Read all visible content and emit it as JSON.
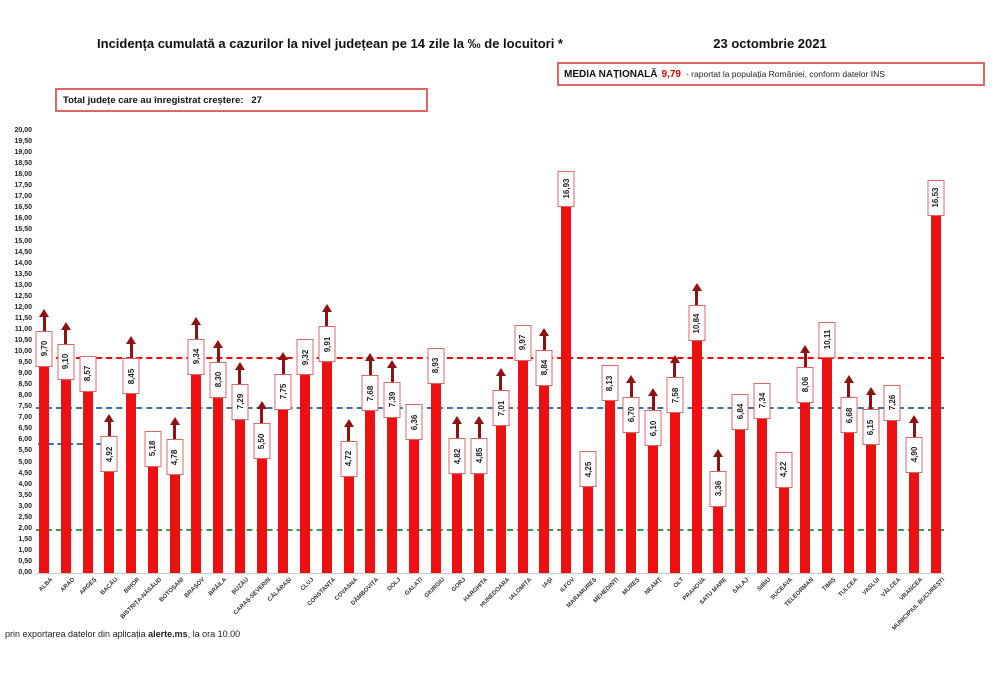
{
  "header": {
    "title": "Incidența cumulată a cazurilor la nivel județean pe 14 zile la ‰ de locuitori *",
    "date": "23 octombrie 2021"
  },
  "national_average_box": {
    "label": "MEDIA NAȚIONALĂ",
    "value": "9,79",
    "suffix": "-  raportat la populația României, conform datelor INS"
  },
  "total_box": {
    "label": "Total județe care au înregistrat creștere:",
    "value": "27"
  },
  "footer": {
    "prefix": "prin exportarea datelor din aplicația ",
    "app_name": "alerte.ms",
    "suffix": ", la ora 10.00"
  },
  "colors": {
    "bar": "#ee1010",
    "arrow": "#8e1212",
    "label_box_border": "#e06666",
    "media_value_red": "#e00000",
    "line_red": "#ff0000",
    "line_blue": "#2e75b6",
    "line_green": "#2f9e4f"
  },
  "chart_data": {
    "type": "bar",
    "title": "Incidența cumulată a cazurilor la nivel județean pe 14 zile la ‰ de locuitori *",
    "xlabel": "",
    "ylabel": "",
    "ylim": [
      0,
      20
    ],
    "ytick_step": 0.5,
    "grid": false,
    "legend": "none",
    "value_label_format": "comma-decimal, boxed, rotated 90°",
    "increase_marker": "dark-red up arrow above label (27 counties)",
    "reference_lines": [
      {
        "name": "media-nationala",
        "value": 9.79,
        "color": "#ff0000",
        "style": "dashed",
        "extent": "full"
      },
      {
        "name": "prag-7-5",
        "value": 7.5,
        "color": "#2e75b6",
        "style": "dashed",
        "extent": "full"
      },
      {
        "name": "prag-2",
        "value": 2.0,
        "color": "#2f9e4f",
        "style": "dashed",
        "extent": "full"
      },
      {
        "name": "fragment-blue-left",
        "value": 5.9,
        "color": "#2e75b6",
        "style": "dashed",
        "extent": "left-fragment"
      }
    ],
    "bars": [
      {
        "county": "ALBA",
        "value": 9.7,
        "label": "9,70",
        "increase": true
      },
      {
        "county": "ARAD",
        "value": 9.1,
        "label": "9,10",
        "increase": true
      },
      {
        "county": "ARGEȘ",
        "value": 8.57,
        "label": "8,57",
        "increase": false
      },
      {
        "county": "BACĂU",
        "value": 4.92,
        "label": "4,92",
        "increase": true
      },
      {
        "county": "BIHOR",
        "value": 8.45,
        "label": "8,45",
        "increase": true
      },
      {
        "county": "BISTRIȚA-NĂSĂUD",
        "value": 5.18,
        "label": "5,18",
        "increase": false
      },
      {
        "county": "BOTOȘANI",
        "value": 4.78,
        "label": "4,78",
        "increase": true
      },
      {
        "county": "BRAȘOV",
        "value": 9.34,
        "label": "9,34",
        "increase": true
      },
      {
        "county": "BRĂILA",
        "value": 8.3,
        "label": "8,30",
        "increase": true
      },
      {
        "county": "BUZĂU",
        "value": 7.29,
        "label": "7,29",
        "increase": true
      },
      {
        "county": "CARAȘ-SEVERIN",
        "value": 5.5,
        "label": "5,50",
        "increase": true
      },
      {
        "county": "CĂLĂRAȘI",
        "value": 7.75,
        "label": "7,75",
        "increase": true
      },
      {
        "county": "CLUJ",
        "value": 9.32,
        "label": "9,32",
        "increase": false
      },
      {
        "county": "CONSTANȚA",
        "value": 9.91,
        "label": "9,91",
        "increase": true
      },
      {
        "county": "COVASNA",
        "value": 4.72,
        "label": "4,72",
        "increase": true
      },
      {
        "county": "DÂMBOVIȚA",
        "value": 7.68,
        "label": "7,68",
        "increase": true
      },
      {
        "county": "DOLJ",
        "value": 7.39,
        "label": "7,39",
        "increase": true
      },
      {
        "county": "GALAȚI",
        "value": 6.36,
        "label": "6,36",
        "increase": false
      },
      {
        "county": "GIURGIU",
        "value": 8.93,
        "label": "8,93",
        "increase": false
      },
      {
        "county": "GORJ",
        "value": 4.82,
        "label": "4,82",
        "increase": true
      },
      {
        "county": "HARGHITA",
        "value": 4.85,
        "label": "4,85",
        "increase": true
      },
      {
        "county": "HUNEDOARA",
        "value": 7.01,
        "label": "7,01",
        "increase": true
      },
      {
        "county": "IALOMIȚA",
        "value": 9.97,
        "label": "9,97",
        "increase": false
      },
      {
        "county": "IAȘI",
        "value": 8.84,
        "label": "8,84",
        "increase": true
      },
      {
        "county": "ILFOV",
        "value": 16.93,
        "label": "16,93",
        "increase": false
      },
      {
        "county": "MARAMUREȘ",
        "value": 4.25,
        "label": "4,25",
        "increase": false
      },
      {
        "county": "MEHEDINȚI",
        "value": 8.13,
        "label": "8,13",
        "increase": false
      },
      {
        "county": "MUREȘ",
        "value": 6.7,
        "label": "6,70",
        "increase": true
      },
      {
        "county": "NEAMȚ",
        "value": 6.1,
        "label": "6,10",
        "increase": true
      },
      {
        "county": "OLT",
        "value": 7.58,
        "label": "7,58",
        "increase": true
      },
      {
        "county": "PRAHOVA",
        "value": 10.84,
        "label": "10,84",
        "increase": true
      },
      {
        "county": "SATU MARE",
        "value": 3.36,
        "label": "3,36",
        "increase": true
      },
      {
        "county": "SĂLAJ",
        "value": 6.84,
        "label": "6,84",
        "increase": false
      },
      {
        "county": "SIBIU",
        "value": 7.34,
        "label": "7,34",
        "increase": false
      },
      {
        "county": "SUCEAVA",
        "value": 4.22,
        "label": "4,22",
        "increase": false
      },
      {
        "county": "TELEORMAN",
        "value": 8.06,
        "label": "8,06",
        "increase": true
      },
      {
        "county": "TIMIȘ",
        "value": 10.11,
        "label": "10,11",
        "increase": false
      },
      {
        "county": "TULCEA",
        "value": 6.68,
        "label": "6,68",
        "increase": true
      },
      {
        "county": "VASLUI",
        "value": 6.15,
        "label": "6,15",
        "increase": true
      },
      {
        "county": "VÂLCEA",
        "value": 7.26,
        "label": "7,26",
        "increase": false
      },
      {
        "county": "VRANCEA",
        "value": 4.9,
        "label": "4,90",
        "increase": true
      },
      {
        "county": "MUNICIPIUL BUCUREȘTI",
        "value": 16.53,
        "label": "16,53",
        "increase": false
      }
    ]
  }
}
